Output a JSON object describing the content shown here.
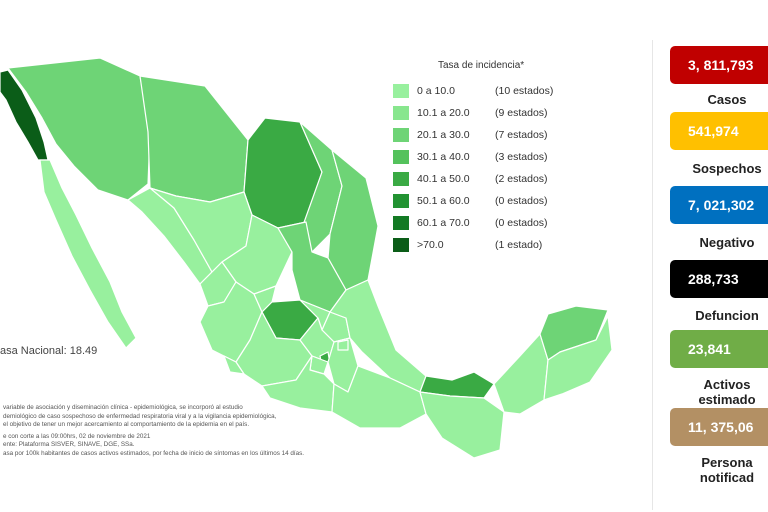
{
  "legend": {
    "title": "Tasa de incidencia*",
    "items": [
      {
        "range": "0   a  10.0",
        "count": "(10 estados)",
        "color": "#98f09e"
      },
      {
        "range": "10.1  a  20.0",
        "count": "(9 estados)",
        "color": "#88e68e"
      },
      {
        "range": "20.1  a  30.0",
        "count": "(7 estados)",
        "color": "#6ed476"
      },
      {
        "range": "30.1  a  40.0",
        "count": "(3 estados)",
        "color": "#54c25c"
      },
      {
        "range": "40.1  a  50.0",
        "count": "(2 estados)",
        "color": "#3aaa44"
      },
      {
        "range": "50.1  a  60.0",
        "count": "(0 estados)",
        "color": "#229332"
      },
      {
        "range": "60.1  a  70.0",
        "count": "(0 estados)",
        "color": "#137a24"
      },
      {
        "range": ">70.0",
        "count": "(1 estado)",
        "color": "#0b5d18"
      }
    ]
  },
  "tasa_nacional": "asa Nacional: 18.49",
  "notes": [
    "variable de asociación y diseminación clínica - epidemiológica, se incorporó al estudio",
    "demiológico de caso sospechoso de enfermedad respiratoria viral y a la vigilancia epidemiológica,",
    "el objetivo de tener un mejor acercamiento al comportamiento de la epidemia en el país.",
    "e con corte a las 09:00hrs, 02 de noviembre de 2021",
    "ente: Plataforma SISVER, SINAVE, DGE, SSa.",
    "asa por 100k habitantes de casos activos estimados, por fecha de inicio de síntomas en los últimos 14 días."
  ],
  "stats": [
    {
      "value": "3, 811,793",
      "label": "Casos",
      "color": "#c00000"
    },
    {
      "value": "541,974",
      "label": "Sospechos",
      "color": "#ffc000"
    },
    {
      "value": "7, 021,302",
      "label": "Negativo",
      "color": "#0070c0"
    },
    {
      "value": "288,733",
      "label": "Defuncion",
      "color": "#000000"
    },
    {
      "value": "23,841",
      "label": "Activos estimado",
      "color": "#70ad47"
    },
    {
      "value": "11, 375,06",
      "label": "Persona notificad",
      "color": "#b39064"
    }
  ],
  "map_colors": {
    "border": "#ffffff",
    "bc": "#0b5d18",
    "light": "#98f09e",
    "mid": "#6ed476",
    "dark": "#3aaa44"
  }
}
